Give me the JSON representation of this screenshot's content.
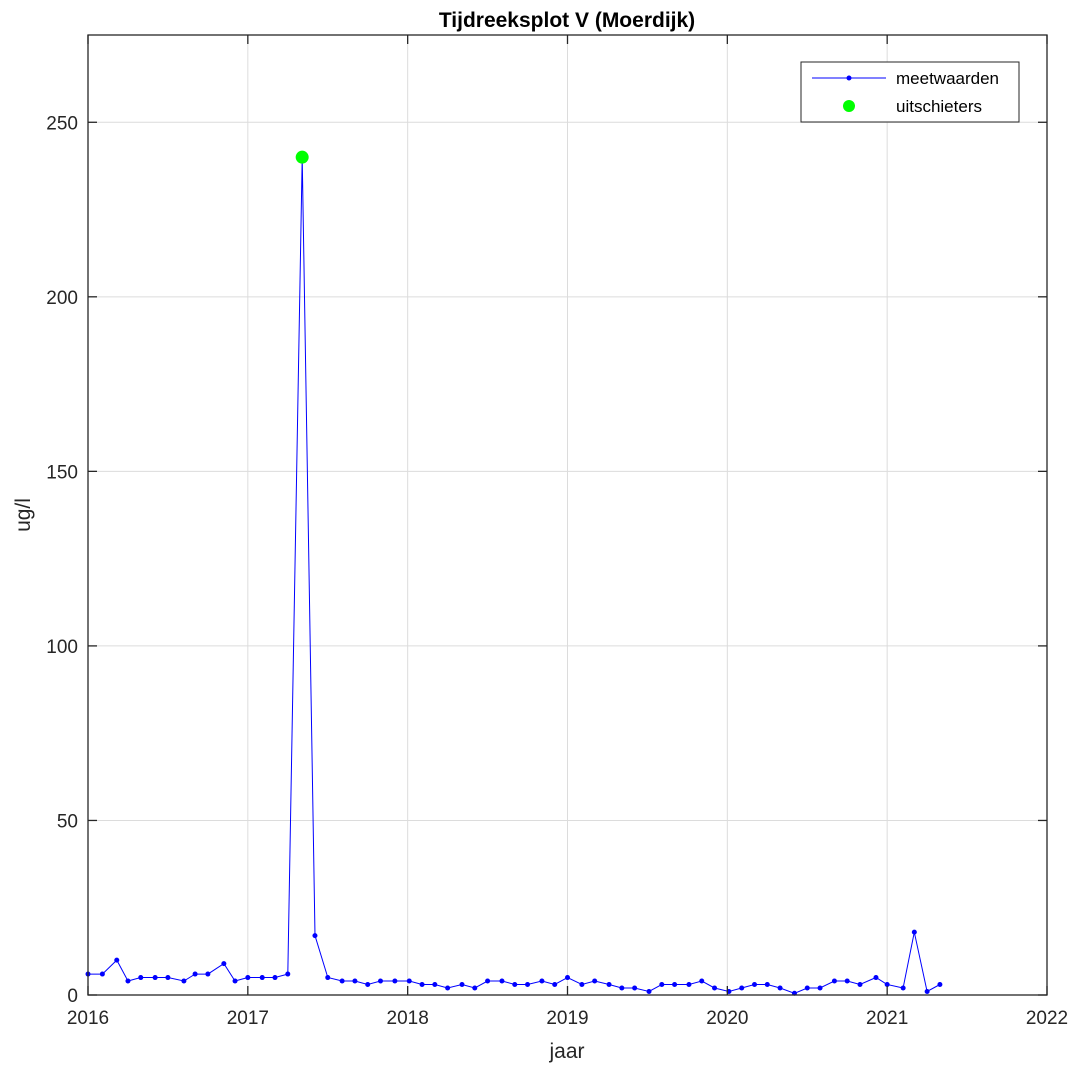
{
  "chart_data": {
    "type": "line",
    "title": "Tijdreeksplot V (Moerdijk)",
    "xlabel": "jaar",
    "ylabel": "ug/l",
    "xlim": [
      2016,
      2022
    ],
    "ylim": [
      0,
      275
    ],
    "xticks": [
      2016,
      2017,
      2018,
      2019,
      2020,
      2021,
      2022
    ],
    "yticks": [
      0,
      50,
      100,
      150,
      200,
      250
    ],
    "grid": true,
    "legend_position": "top-right",
    "series": [
      {
        "name": "meetwaarden",
        "color": "#0000ff",
        "marker": "dot",
        "x": [
          2016.0,
          2016.09,
          2016.18,
          2016.25,
          2016.33,
          2016.42,
          2016.5,
          2016.6,
          2016.67,
          2016.75,
          2016.85,
          2016.92,
          2017.0,
          2017.09,
          2017.17,
          2017.25,
          2017.34,
          2017.42,
          2017.5,
          2017.59,
          2017.67,
          2017.75,
          2017.83,
          2017.92,
          2018.01,
          2018.09,
          2018.17,
          2018.25,
          2018.34,
          2018.42,
          2018.5,
          2018.59,
          2018.67,
          2018.75,
          2018.84,
          2018.92,
          2019.0,
          2019.09,
          2019.17,
          2019.26,
          2019.34,
          2019.42,
          2019.51,
          2019.59,
          2019.67,
          2019.76,
          2019.84,
          2019.92,
          2020.01,
          2020.09,
          2020.17,
          2020.25,
          2020.33,
          2020.42,
          2020.5,
          2020.58,
          2020.67,
          2020.75,
          2020.83,
          2020.93,
          2021.0,
          2021.1,
          2021.17,
          2021.25,
          2021.33
        ],
        "values": [
          6,
          6,
          10,
          4,
          5,
          5,
          5,
          4,
          6,
          6,
          9,
          4,
          5,
          5,
          5,
          6,
          240,
          17,
          5,
          4,
          4,
          3,
          4,
          4,
          4,
          3,
          3,
          2,
          3,
          2,
          4,
          4,
          3,
          3,
          4,
          3,
          5,
          3,
          4,
          3,
          2,
          2,
          1,
          3,
          3,
          3,
          4,
          2,
          1,
          2,
          3,
          3,
          2,
          0.5,
          2,
          2,
          4,
          4,
          3,
          5,
          3,
          2,
          18,
          1,
          3
        ]
      },
      {
        "name": "uitschieters",
        "color": "#00ff00",
        "marker": "circle",
        "x": [
          2017.34
        ],
        "values": [
          240
        ]
      }
    ]
  }
}
